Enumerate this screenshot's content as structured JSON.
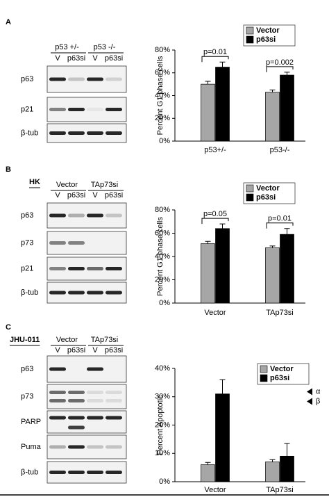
{
  "panels": [
    {
      "label": "A",
      "blot": {
        "groups": [
          "p53 +/-",
          "p53 -/-"
        ],
        "lanes": [
          "V",
          "p63si",
          "V",
          "p63si"
        ],
        "rows": [
          "p63",
          "p21",
          "β-tub"
        ]
      }
    },
    {
      "label": "B",
      "cell_line": "HK",
      "blot": {
        "groups": [
          "Vector",
          "TAp73si"
        ],
        "lanes": [
          "V",
          "p63si",
          "V",
          "p63si"
        ],
        "rows": [
          "p63",
          "p73",
          "p21",
          "β-tub"
        ]
      }
    },
    {
      "label": "C",
      "cell_line": "JHU-011",
      "blot": {
        "groups": [
          "Vector",
          "TAp73si"
        ],
        "lanes": [
          "V",
          "p63si",
          "V",
          "p63si"
        ],
        "rows": [
          "p63",
          "p73",
          "PARP",
          "Puma",
          "β-tub"
        ],
        "markers": [
          "α",
          "β"
        ]
      }
    }
  ],
  "chart_data": [
    {
      "type": "bar",
      "ylabel": "Percent G1 phase cells",
      "categories": [
        "p53+/-",
        "p53-/-"
      ],
      "series": [
        {
          "name": "Vector",
          "color": "#a6a6a6",
          "values": [
            50,
            43
          ],
          "errors": [
            2.5,
            2
          ]
        },
        {
          "name": "p63si",
          "color": "#000000",
          "values": [
            65,
            58
          ],
          "errors": [
            4.5,
            2.5
          ]
        }
      ],
      "annotations": [
        "p=0.01",
        "p=0.002"
      ],
      "ylim": [
        0,
        80
      ],
      "yticks": [
        {
          "value": 0,
          "label": "0%"
        },
        {
          "value": 20,
          "label": "20%"
        },
        {
          "value": 40,
          "label": "40%"
        },
        {
          "value": 60,
          "label": "60%"
        },
        {
          "value": 80,
          "label": "80%"
        }
      ]
    },
    {
      "type": "bar",
      "ylabel": "Percent G1 phase cells",
      "categories": [
        "Vector",
        "TAp73si"
      ],
      "series": [
        {
          "name": "Vector",
          "color": "#a6a6a6",
          "values": [
            51,
            47.5
          ],
          "errors": [
            2,
            1.5
          ]
        },
        {
          "name": "p63si",
          "color": "#000000",
          "values": [
            64,
            59
          ],
          "errors": [
            4,
            5
          ]
        }
      ],
      "annotations": [
        "p=0.05",
        "p=0.01"
      ],
      "ylim": [
        0,
        80
      ],
      "yticks": [
        {
          "value": 0,
          "label": "0%"
        },
        {
          "value": 20,
          "label": "20%"
        },
        {
          "value": 40,
          "label": "40%"
        },
        {
          "value": 60,
          "label": "60%"
        },
        {
          "value": 80,
          "label": "80%"
        }
      ]
    },
    {
      "type": "bar",
      "ylabel": "Percent Apoptotic",
      "categories": [
        "Vector",
        "TAp73si"
      ],
      "series": [
        {
          "name": "Vector",
          "color": "#a6a6a6",
          "values": [
            6,
            7
          ],
          "errors": [
            0.8,
            0.8
          ]
        },
        {
          "name": "p63si",
          "color": "#000000",
          "values": [
            31,
            9
          ],
          "errors": [
            5,
            4.5
          ]
        }
      ],
      "ylim": [
        0,
        40
      ],
      "yticks": [
        {
          "value": 0,
          "label": "0%"
        },
        {
          "value": 10,
          "label": "10%"
        },
        {
          "value": 20,
          "label": "20%"
        },
        {
          "value": 30,
          "label": "30%"
        },
        {
          "value": 40,
          "label": "40%"
        }
      ]
    }
  ]
}
